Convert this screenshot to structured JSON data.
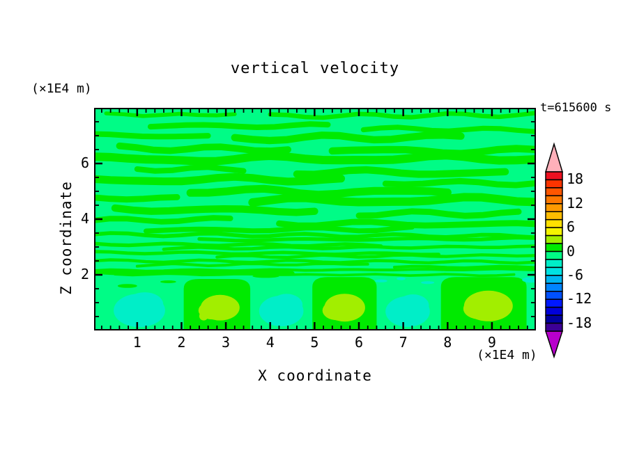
{
  "title": "vertical velocity",
  "timestamp": "t=615600 s",
  "axes": {
    "x": {
      "label": "X coordinate",
      "unit": "(×1E4 m)",
      "min": 0.06,
      "max": 9.96,
      "major_ticks": [
        1,
        2,
        3,
        4,
        5,
        6,
        7,
        8,
        9
      ],
      "minor_step": 0.2
    },
    "z": {
      "label": "Z coordinate",
      "unit": "(×1E4 m)",
      "min": 0.05,
      "max": 7.95,
      "major_ticks": [
        2,
        4,
        6
      ],
      "minor_step": 0.5
    }
  },
  "colorbar": {
    "labels": [
      "18",
      "12",
      "6",
      "0",
      "-6",
      "-12",
      "-18"
    ],
    "level_min": -20,
    "level_max": 20,
    "level_step": 2,
    "colors_top_to_bottom": [
      "#ee1020",
      "#fc3400",
      "#ff5600",
      "#ff7800",
      "#ff9a00",
      "#ffbc00",
      "#ffe000",
      "#f4f400",
      "#a2ee00",
      "#00ea00",
      "#00fc86",
      "#00eec8",
      "#00e2e2",
      "#00b6f2",
      "#0084ff",
      "#0050ff",
      "#0018ff",
      "#0000da",
      "#0000a0",
      "#3c0096"
    ],
    "over_color": "#ffb0ba",
    "under_color": "#b800cc"
  },
  "chart_data": {
    "type": "contour",
    "title": "vertical velocity",
    "xlabel": "X coordinate",
    "ylabel": "Z coordinate",
    "x_range": [
      0.06,
      9.96
    ],
    "z_range": [
      0.05,
      7.95
    ],
    "coordinate_unit": "×1E4 m",
    "time_label": "t=615600 s",
    "contour_levels_min": -20,
    "contour_levels_max": 20,
    "contour_interval": 2,
    "field": {
      "bg_color": "#00fc86",
      "streak_color": "#00ea00",
      "updraft_inner_color": "#a2ee00",
      "downdraft_color": "#00eec8",
      "streaks": [
        [
          7.75,
          0.3,
          3.2,
          0.14,
          0.04,
          2.0,
          0.0,
          0.0
        ],
        [
          7.7,
          4.0,
          9.96,
          0.16,
          0.05,
          1.5,
          1.0,
          0.05
        ],
        [
          7.35,
          1.3,
          5.3,
          0.2,
          0.06,
          1.2,
          2.0,
          0.0
        ],
        [
          7.25,
          6.1,
          9.96,
          0.18,
          0.05,
          1.4,
          0.0,
          -0.05
        ],
        [
          7.0,
          0.0,
          2.6,
          0.2,
          0.05,
          1.0,
          1.0,
          0.0
        ],
        [
          6.9,
          3.2,
          8.3,
          0.26,
          0.07,
          1.1,
          2.0,
          0.06
        ],
        [
          6.55,
          0.6,
          4.4,
          0.24,
          0.06,
          1.3,
          0.0,
          -0.04
        ],
        [
          6.45,
          5.4,
          9.96,
          0.26,
          0.07,
          0.9,
          2.0,
          0.0
        ],
        [
          6.15,
          0.0,
          9.96,
          0.3,
          0.08,
          0.8,
          1.0,
          0.04
        ],
        [
          5.8,
          1.0,
          3.4,
          0.2,
          0.05,
          1.5,
          0.0,
          0.0
        ],
        [
          5.7,
          4.6,
          9.3,
          0.26,
          0.07,
          1.0,
          1.0,
          -0.05
        ],
        [
          5.4,
          0.0,
          5.6,
          0.28,
          0.07,
          0.9,
          2.0,
          0.04
        ],
        [
          5.3,
          6.6,
          9.96,
          0.22,
          0.06,
          1.2,
          0.0,
          0.0
        ],
        [
          5.0,
          2.2,
          8.0,
          0.28,
          0.08,
          0.9,
          1.0,
          -0.04
        ],
        [
          4.75,
          0.0,
          1.9,
          0.22,
          0.05,
          1.4,
          2.0,
          0.0
        ],
        [
          4.65,
          3.6,
          9.96,
          0.3,
          0.08,
          0.8,
          0.0,
          0.05
        ],
        [
          4.35,
          0.5,
          5.0,
          0.26,
          0.07,
          1.1,
          1.0,
          -0.04
        ],
        [
          4.2,
          6.0,
          9.6,
          0.22,
          0.06,
          1.2,
          2.0,
          0.0
        ],
        [
          3.95,
          0.0,
          3.1,
          0.2,
          0.05,
          1.3,
          0.0,
          0.04
        ],
        [
          3.85,
          4.2,
          9.96,
          0.22,
          0.06,
          1.0,
          1.0,
          -0.05
        ],
        [
          3.6,
          1.2,
          7.2,
          0.18,
          0.05,
          1.2,
          2.0,
          0.05
        ],
        [
          3.45,
          0.0,
          9.96,
          0.14,
          0.04,
          1.4,
          0.0,
          -0.06
        ],
        [
          3.25,
          2.4,
          9.96,
          0.13,
          0.04,
          1.3,
          1.0,
          0.05
        ],
        [
          3.1,
          0.0,
          6.5,
          0.13,
          0.04,
          1.5,
          2.0,
          -0.04
        ],
        [
          2.95,
          1.6,
          9.96,
          0.12,
          0.03,
          1.6,
          0.0,
          0.06
        ],
        [
          2.8,
          0.0,
          7.8,
          0.12,
          0.03,
          1.4,
          1.0,
          -0.05
        ],
        [
          2.65,
          2.8,
          9.96,
          0.11,
          0.03,
          1.7,
          2.0,
          0.05
        ],
        [
          2.5,
          0.0,
          9.96,
          0.11,
          0.03,
          1.5,
          0.0,
          -0.04
        ],
        [
          2.35,
          1.0,
          6.2,
          0.1,
          0.03,
          1.8,
          1.0,
          0.04
        ],
        [
          2.28,
          6.8,
          9.96,
          0.1,
          0.02,
          1.6,
          2.0,
          0.0
        ],
        [
          2.15,
          0.0,
          9.96,
          0.1,
          0.02,
          1.7,
          0.0,
          0.05
        ],
        [
          2.08,
          0.0,
          4.5,
          0.16,
          0.03,
          1.6,
          1.5,
          0.0
        ],
        [
          2.02,
          0.5,
          9.5,
          0.09,
          0.02,
          1.9,
          1.0,
          -0.03
        ]
      ],
      "updraft_domes": [
        {
          "x0": 2.05,
          "x1": 3.55,
          "top": 1.85,
          "inner": [
            2.87,
            0.82,
            0.44,
            0.46
          ],
          "dot": [
            2.5,
            0.52,
            0.1
          ]
        },
        {
          "x0": 4.95,
          "x1": 6.4,
          "top": 1.92,
          "inner": [
            5.68,
            0.82,
            0.46,
            0.5
          ]
        },
        {
          "x0": 7.85,
          "x1": 9.78,
          "top": 1.92,
          "inner": [
            8.92,
            0.88,
            0.55,
            0.55
          ]
        }
      ],
      "downdraft_blobs": [
        [
          1.05,
          0.72,
          0.58,
          0.6
        ],
        [
          4.25,
          0.7,
          0.5,
          0.55
        ],
        [
          7.1,
          0.68,
          0.5,
          0.55
        ]
      ],
      "teal_specks": [
        [
          6.5,
          1.78,
          0.14,
          0.05
        ],
        [
          6.95,
          1.86,
          0.1,
          0.04
        ],
        [
          7.55,
          1.72,
          0.15,
          0.05
        ],
        [
          9.88,
          1.82,
          0.2,
          0.1
        ]
      ],
      "green_specks": [
        [
          0.78,
          1.6,
          0.22,
          0.07
        ],
        [
          1.7,
          1.75,
          0.18,
          0.05
        ],
        [
          3.9,
          1.95,
          0.3,
          0.06
        ]
      ]
    }
  }
}
